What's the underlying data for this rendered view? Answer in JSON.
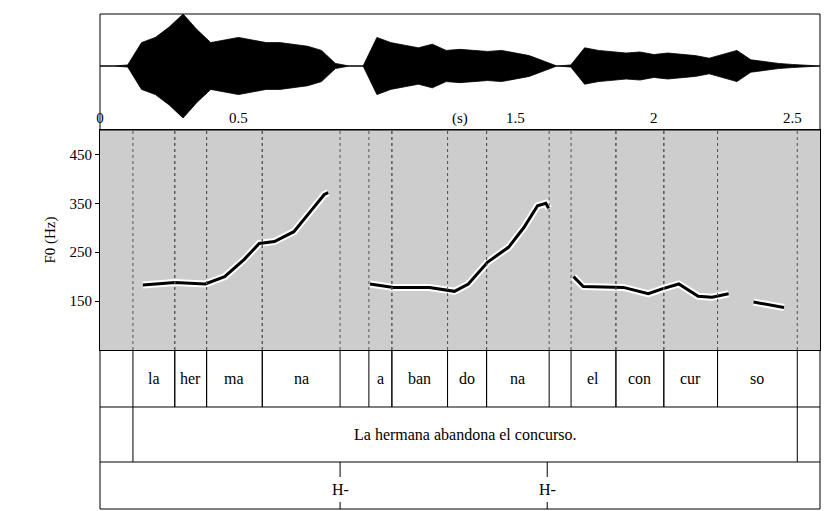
{
  "chart_data": {
    "type": "line",
    "x_label": "(s)",
    "y_label": "F0 (Hz)",
    "xlim": [
      0,
      2.6
    ],
    "xticks": [
      0,
      0.5,
      1.5,
      2,
      2.5
    ],
    "ylim": [
      50,
      500
    ],
    "yticks": [
      150,
      250,
      350,
      450
    ],
    "series": [
      {
        "color": "#000000",
        "line_style": "solid",
        "x": [
          0.155,
          0.27,
          0.38,
          0.45,
          0.52,
          0.575,
          0.63,
          0.7,
          0.755,
          0.81,
          0.824,
          0.9,
          0.975,
          1.06,
          1.19,
          1.28,
          1.33,
          1.4,
          1.475,
          1.53,
          1.58,
          1.61,
          1.62,
          1.66,
          1.71,
          1.745,
          1.89,
          1.98,
          2.03,
          2.09,
          2.16,
          2.21,
          2.27,
          2.31,
          2.36,
          2.41,
          2.47
        ],
        "values": [
          183,
          188,
          185,
          200,
          235,
          268,
          272,
          292,
          330,
          368,
          372,
          null,
          185,
          178,
          178,
          170,
          185,
          230,
          260,
          300,
          345,
          350,
          340,
          null,
          200,
          180,
          178,
          165,
          175,
          185,
          160,
          158,
          165,
          null,
          148,
          143,
          137
        ]
      }
    ],
    "waveform": {
      "color": "#000000",
      "ylim": [
        -1,
        1
      ],
      "x": [
        0,
        0.05,
        0.1,
        0.15,
        0.2,
        0.25,
        0.3,
        0.35,
        0.4,
        0.45,
        0.5,
        0.55,
        0.6,
        0.65,
        0.7,
        0.75,
        0.8,
        0.85,
        0.9,
        0.95,
        1,
        1.05,
        1.1,
        1.15,
        1.2,
        1.25,
        1.3,
        1.35,
        1.4,
        1.45,
        1.5,
        1.55,
        1.6,
        1.65,
        1.7,
        1.75,
        1.8,
        1.85,
        1.9,
        1.95,
        2,
        2.05,
        2.1,
        2.15,
        2.2,
        2.25,
        2.3,
        2.35,
        2.4,
        2.45,
        2.5,
        2.55,
        2.6
      ],
      "values": [
        0,
        0,
        0.02,
        0.45,
        0.55,
        0.75,
        1,
        0.7,
        0.45,
        0.5,
        0.55,
        0.5,
        0.45,
        0.45,
        0.42,
        0.38,
        0.3,
        0.05,
        0,
        0,
        0.55,
        0.45,
        0.4,
        0.35,
        0.42,
        0.3,
        0.32,
        0.3,
        0.28,
        0.3,
        0.25,
        0.2,
        0.1,
        0,
        0.02,
        0.35,
        0.3,
        0.28,
        0.25,
        0.27,
        0.22,
        0.25,
        0.22,
        0.2,
        0.15,
        0.22,
        0.3,
        0.12,
        0.08,
        0.05,
        0.03,
        0.01,
        0
      ]
    },
    "tiers": [
      {
        "intervals": [
          {
            "start": 0.119,
            "end": 0.27,
            "text": "la"
          },
          {
            "start": 0.27,
            "end": 0.385,
            "text": "her"
          },
          {
            "start": 0.385,
            "end": 0.586,
            "text": "ma"
          },
          {
            "start": 0.586,
            "end": 0.867,
            "text": "na"
          },
          {
            "start": 0.971,
            "end": 1.054,
            "text": "a"
          },
          {
            "start": 1.054,
            "end": 1.255,
            "text": "ban"
          },
          {
            "start": 1.255,
            "end": 1.396,
            "text": "do"
          },
          {
            "start": 1.396,
            "end": 1.622,
            "text": "na"
          },
          {
            "start": 1.701,
            "end": 1.863,
            "text": "el"
          },
          {
            "start": 1.863,
            "end": 2.036,
            "text": "con"
          },
          {
            "start": 2.036,
            "end": 2.23,
            "text": "cur"
          },
          {
            "start": 2.23,
            "end": 2.518,
            "text": "so"
          }
        ]
      },
      {
        "intervals": [
          {
            "start": 0.119,
            "end": 2.518,
            "text": "La hermana abandona el concurso."
          }
        ]
      },
      {
        "points": [
          {
            "time": 0.867,
            "text": "H-"
          },
          {
            "time": 1.615,
            "text": "H-"
          }
        ]
      }
    ]
  }
}
